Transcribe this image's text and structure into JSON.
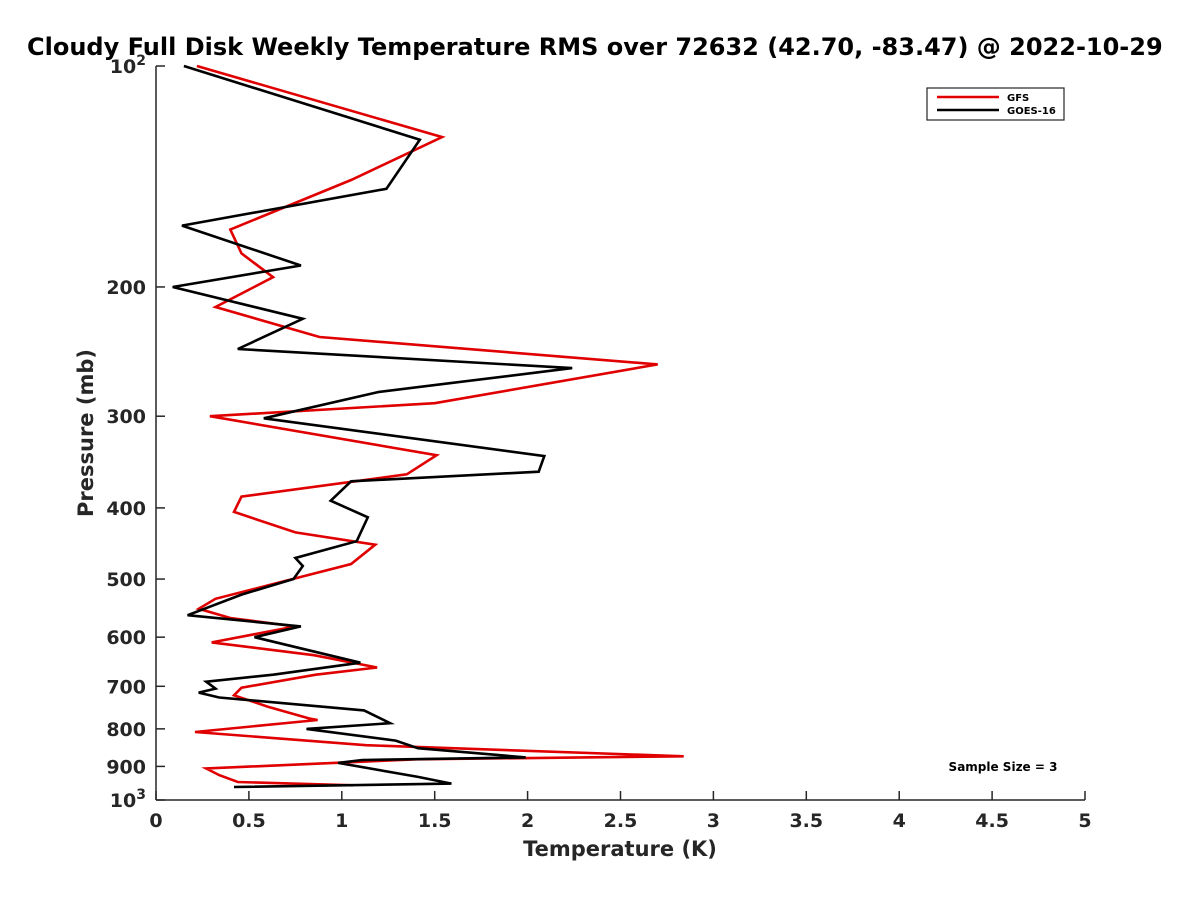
{
  "chart_data": {
    "type": "line",
    "title": "Cloudy Full Disk Weekly Temperature RMS over 72632 (42.70, -83.47) @ 2022-10-29",
    "xlabel": "Temperature (K)",
    "ylabel": "Pressure (mb)",
    "xlim": [
      0,
      5
    ],
    "ylim": [
      100,
      1000
    ],
    "yscale": "log",
    "y_reversed": true,
    "grid": false,
    "legend_position": "top-right",
    "x_ticks": [
      {
        "value": 0,
        "label": "0"
      },
      {
        "value": 0.5,
        "label": "0.5"
      },
      {
        "value": 1,
        "label": "1"
      },
      {
        "value": 1.5,
        "label": "1.5"
      },
      {
        "value": 2,
        "label": "2"
      },
      {
        "value": 2.5,
        "label": "2.5"
      },
      {
        "value": 3,
        "label": "3"
      },
      {
        "value": 3.5,
        "label": "3.5"
      },
      {
        "value": 4,
        "label": "4"
      },
      {
        "value": 4.5,
        "label": "4.5"
      },
      {
        "value": 5,
        "label": "5"
      }
    ],
    "y_ticks": [
      {
        "value": 100,
        "base": "10",
        "exp": "2"
      },
      {
        "value": 200,
        "label": "200"
      },
      {
        "value": 300,
        "label": "300"
      },
      {
        "value": 400,
        "label": "400"
      },
      {
        "value": 500,
        "label": "500"
      },
      {
        "value": 600,
        "label": "600"
      },
      {
        "value": 700,
        "label": "700"
      },
      {
        "value": 800,
        "label": "800"
      },
      {
        "value": 900,
        "label": "900"
      },
      {
        "value": 1000,
        "base": "10",
        "exp": "3"
      }
    ],
    "annotation": "Sample Size = 3",
    "series": [
      {
        "name": "GFS",
        "color": "#e00000",
        "points": [
          [
            0.22,
            100
          ],
          [
            1.54,
            125
          ],
          [
            1.05,
            143
          ],
          [
            0.4,
            167
          ],
          [
            0.46,
            180
          ],
          [
            0.63,
            194
          ],
          [
            0.32,
            213
          ],
          [
            0.88,
            234
          ],
          [
            2.7,
            255
          ],
          [
            1.5,
            288
          ],
          [
            0.29,
            300
          ],
          [
            1.51,
            339
          ],
          [
            1.35,
            360
          ],
          [
            0.46,
            386
          ],
          [
            0.42,
            405
          ],
          [
            0.75,
            432
          ],
          [
            1.18,
            449
          ],
          [
            1.05,
            477
          ],
          [
            0.32,
            532
          ],
          [
            0.23,
            549
          ],
          [
            0.4,
            565
          ],
          [
            0.75,
            580
          ],
          [
            0.3,
            610
          ],
          [
            0.85,
            635
          ],
          [
            1.19,
            660
          ],
          [
            0.86,
            675
          ],
          [
            0.46,
            703
          ],
          [
            0.42,
            720
          ],
          [
            0.6,
            746
          ],
          [
            0.83,
            775
          ],
          [
            0.87,
            778
          ],
          [
            0.21,
            808
          ],
          [
            1.13,
            842
          ],
          [
            2.84,
            872
          ],
          [
            1.4,
            880
          ],
          [
            0.27,
            906
          ],
          [
            0.34,
            925
          ],
          [
            0.44,
            945
          ],
          [
            1.06,
            955
          ]
        ]
      },
      {
        "name": "GOES-16",
        "color": "#000000",
        "points": [
          [
            0.15,
            100
          ],
          [
            1.42,
            126
          ],
          [
            1.24,
            147
          ],
          [
            0.14,
            165
          ],
          [
            0.78,
            187
          ],
          [
            0.09,
            200
          ],
          [
            0.79,
            221
          ],
          [
            0.44,
            243
          ],
          [
            2.24,
            258
          ],
          [
            1.2,
            278
          ],
          [
            0.58,
            302
          ],
          [
            2.09,
            340
          ],
          [
            2.06,
            357
          ],
          [
            1.05,
            368
          ],
          [
            0.94,
            391
          ],
          [
            1.14,
            412
          ],
          [
            1.08,
            444
          ],
          [
            0.75,
            468
          ],
          [
            0.79,
            480
          ],
          [
            0.74,
            500
          ],
          [
            0.46,
            525
          ],
          [
            0.17,
            560
          ],
          [
            0.78,
            580
          ],
          [
            0.53,
            600
          ],
          [
            0.82,
            625
          ],
          [
            1.1,
            650
          ],
          [
            0.63,
            675
          ],
          [
            0.27,
            690
          ],
          [
            0.32,
            705
          ],
          [
            0.23,
            714
          ],
          [
            0.34,
            725
          ],
          [
            1.12,
            755
          ],
          [
            1.26,
            786
          ],
          [
            0.81,
            800
          ],
          [
            1.29,
            830
          ],
          [
            1.41,
            850
          ],
          [
            1.99,
            875
          ],
          [
            1.11,
            882
          ],
          [
            0.98,
            890
          ],
          [
            1.41,
            930
          ],
          [
            1.59,
            950
          ],
          [
            0.42,
            960
          ]
        ]
      }
    ]
  }
}
